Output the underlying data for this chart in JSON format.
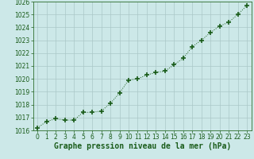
{
  "x": [
    0,
    1,
    2,
    3,
    4,
    5,
    6,
    7,
    8,
    9,
    10,
    11,
    12,
    13,
    14,
    15,
    16,
    17,
    18,
    19,
    20,
    21,
    22,
    23
  ],
  "y": [
    1016.2,
    1016.7,
    1016.9,
    1016.8,
    1016.8,
    1017.4,
    1017.4,
    1017.5,
    1018.1,
    1018.9,
    1019.9,
    1020.0,
    1020.3,
    1020.5,
    1020.6,
    1021.1,
    1021.6,
    1022.5,
    1023.0,
    1023.6,
    1024.1,
    1024.4,
    1025.0,
    1025.7
  ],
  "line_color": "#1a5c1a",
  "marker_color": "#1a5c1a",
  "bg_color": "#cce8e8",
  "grid_color": "#aac8c8",
  "xlabel": "Graphe pression niveau de la mer (hPa)",
  "xlabel_fontsize": 7,
  "ylim": [
    1016,
    1026
  ],
  "yticks": [
    1016,
    1017,
    1018,
    1019,
    1020,
    1021,
    1022,
    1023,
    1024,
    1025,
    1026
  ],
  "xticks": [
    0,
    1,
    2,
    3,
    4,
    5,
    6,
    7,
    8,
    9,
    10,
    11,
    12,
    13,
    14,
    15,
    16,
    17,
    18,
    19,
    20,
    21,
    22,
    23
  ],
  "tick_fontsize": 5.5,
  "label_color": "#1a5c1a",
  "spine_color": "#2d6e2d",
  "xlim_left": -0.5,
  "xlim_right": 23.5
}
